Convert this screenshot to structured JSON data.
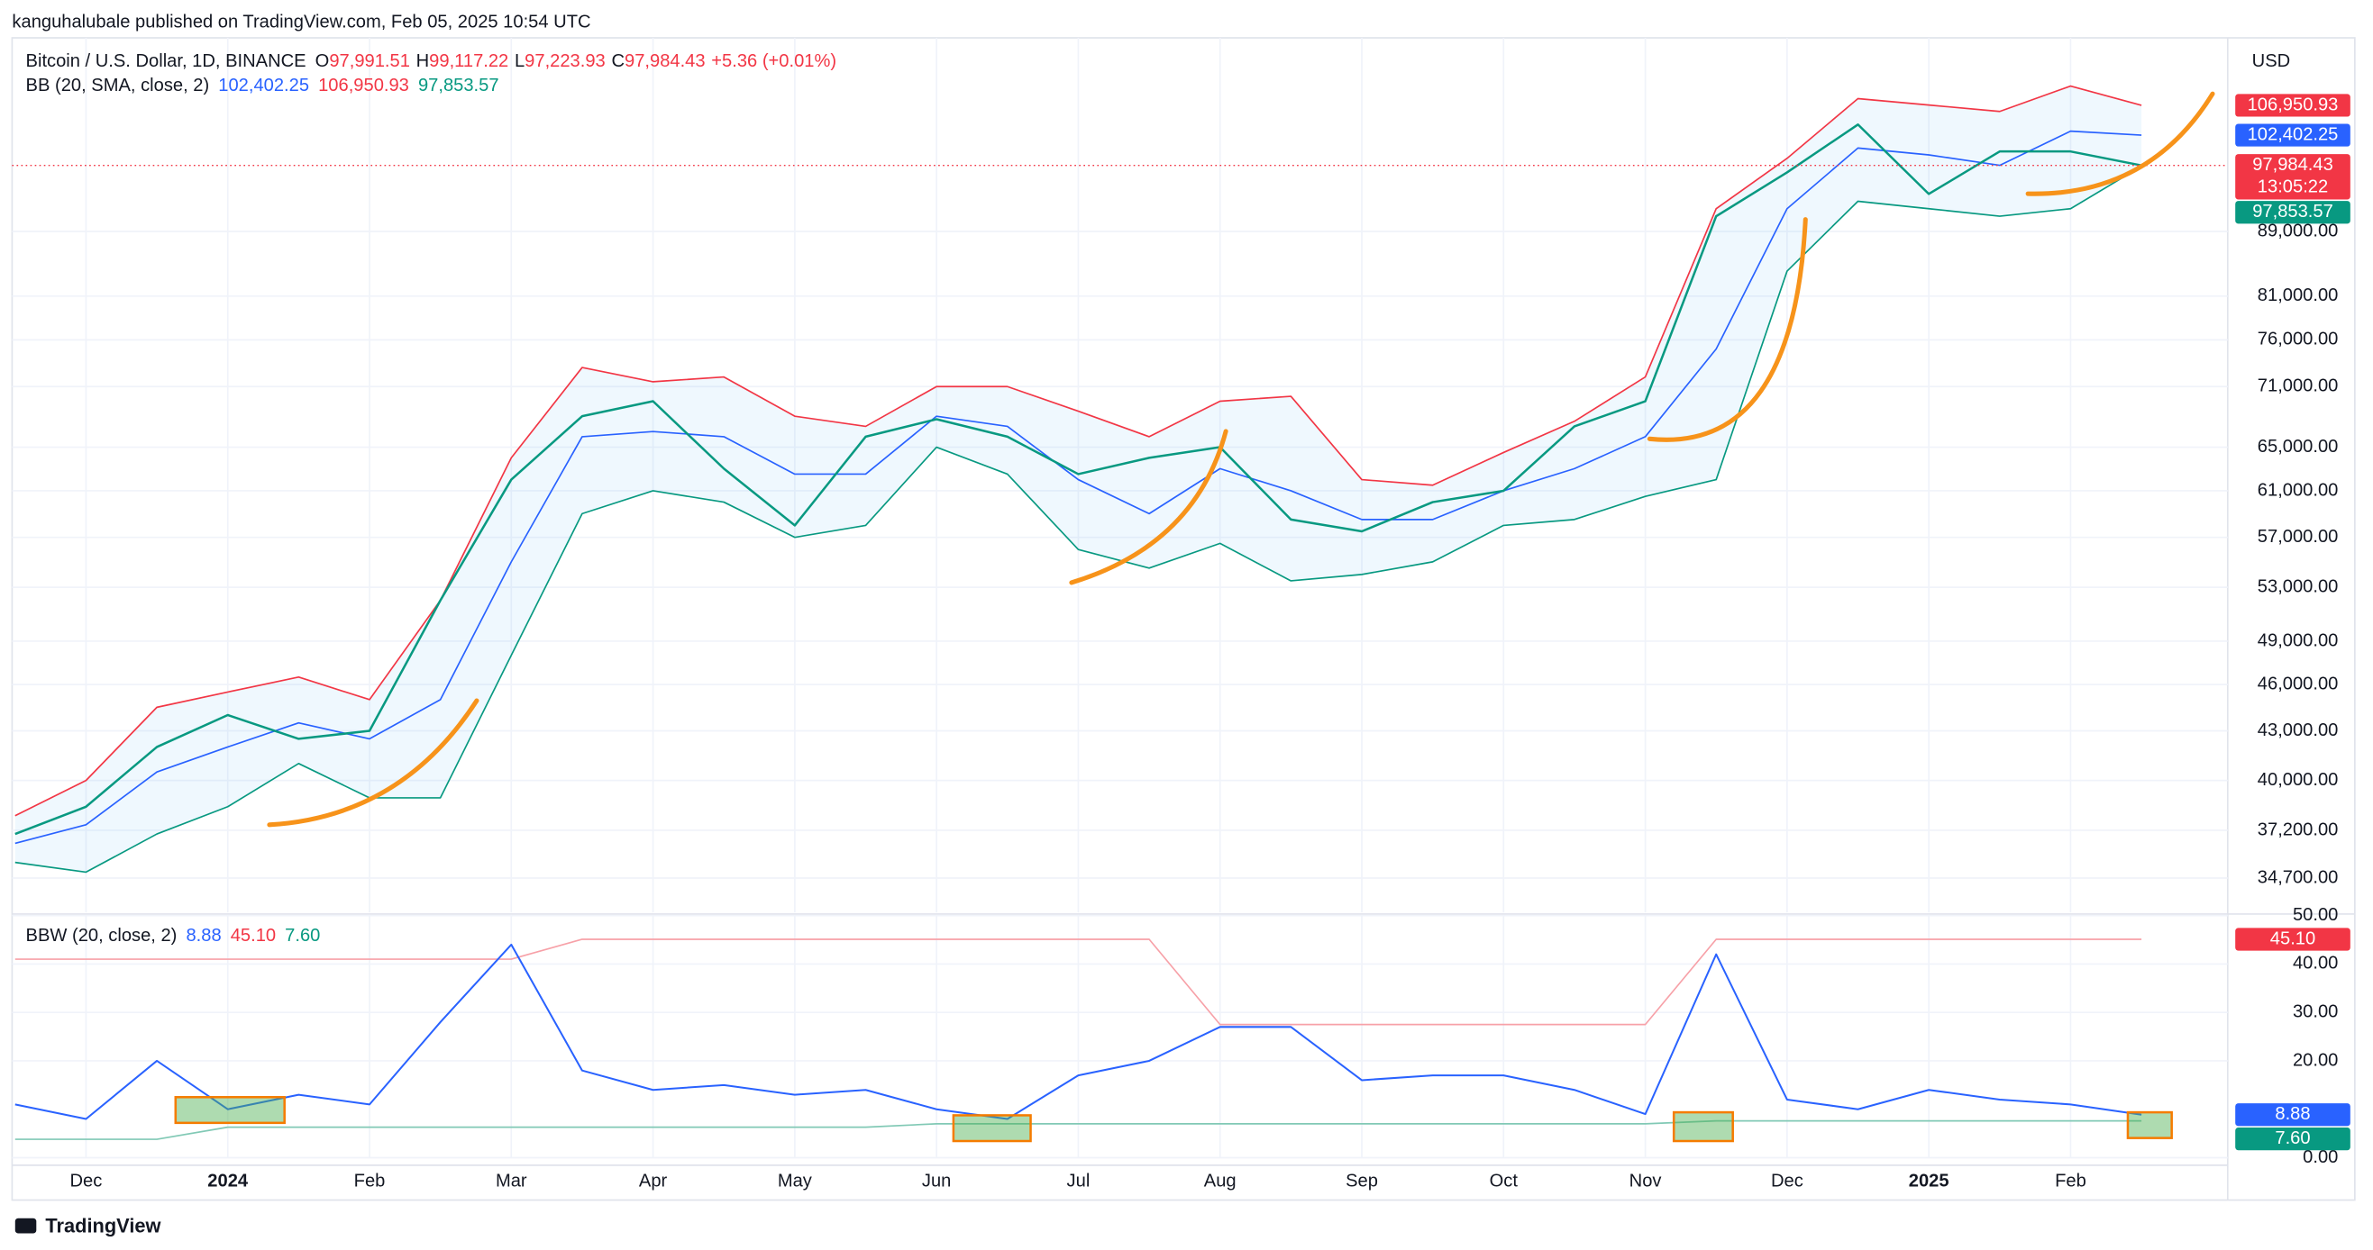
{
  "header": "kanguhalubale published on TradingView.com, Feb 05, 2025 10:54 UTC",
  "footer": "TradingView",
  "chart_data": [
    {
      "type": "line",
      "title": "Bitcoin / U.S. Dollar, 1D, BINANCE",
      "ohlc": [
        {
          "label": "O",
          "value": "97,991.51"
        },
        {
          "label": "H",
          "value": "99,117.22"
        },
        {
          "label": "L",
          "value": "97,223.93"
        },
        {
          "label": "C",
          "value": "97,984.43"
        }
      ],
      "change": "+5.36 (+0.01%)",
      "indicator": "BB (20, SMA, close, 2)",
      "indicator_values": [
        {
          "value": "102,402.25",
          "color": "#2962ff"
        },
        {
          "value": "106,950.93",
          "color": "#f23645"
        },
        {
          "value": "97,853.57",
          "color": "#089981"
        }
      ],
      "currency": "USD",
      "categories": [
        null,
        "Dec",
        null,
        "2024",
        null,
        "Feb",
        null,
        "Mar",
        null,
        "Apr",
        null,
        "May",
        null,
        "Jun",
        null,
        "Jul",
        null,
        "Aug",
        null,
        "Sep",
        null,
        "Oct",
        null,
        "Nov",
        null,
        "Dec",
        null,
        "2025",
        null,
        "Feb",
        null
      ],
      "close": {
        "color": "#089981",
        "values": [
          37000,
          38500,
          42000,
          44000,
          42500,
          43000,
          52000,
          62000,
          68000,
          69500,
          63000,
          58000,
          66000,
          67700,
          66000,
          62500,
          64000,
          65000,
          58500,
          57500,
          60000,
          61000,
          67000,
          69500,
          91000,
          97000,
          104000,
          94000,
          100000,
          100000,
          97984.43
        ]
      },
      "bb_upper": {
        "color": "#f23645",
        "values": [
          38000,
          40000,
          44500,
          45500,
          46500,
          45000,
          52000,
          64000,
          73000,
          71500,
          72000,
          68000,
          67000,
          71000,
          71000,
          68500,
          66000,
          69500,
          70000,
          62000,
          61500,
          64500,
          67500,
          72000,
          92000,
          99000,
          108000,
          107000,
          106000,
          110000,
          106950.93
        ]
      },
      "bb_basis": {
        "color": "#2962ff",
        "values": [
          36500,
          37500,
          40500,
          42000,
          43500,
          42500,
          45000,
          55000,
          66000,
          66500,
          66000,
          62500,
          62500,
          68000,
          67000,
          62000,
          59000,
          63000,
          61000,
          58500,
          58500,
          61000,
          63000,
          66000,
          75000,
          92000,
          100500,
          99500,
          98000,
          103000,
          102402.25
        ]
      },
      "bb_lower": {
        "color": "#089981",
        "values": [
          35500,
          35000,
          37000,
          38500,
          41000,
          39000,
          39000,
          48000,
          59000,
          61000,
          60000,
          57000,
          58000,
          65000,
          62500,
          56000,
          54500,
          56500,
          53500,
          54000,
          55000,
          58000,
          58500,
          60500,
          62000,
          84000,
          93000,
          92000,
          91000,
          92000,
          97853.57
        ]
      },
      "band_fill": "#2196f3",
      "log_scale": true,
      "grid": true,
      "ylim": [
        33000,
        118000
      ],
      "yticks": [
        {
          "value": 34700,
          "label": "34,700.00"
        },
        {
          "value": 37200,
          "label": "37,200.00"
        },
        {
          "value": 40000,
          "label": "40,000.00"
        },
        {
          "value": 43000,
          "label": "43,000.00"
        },
        {
          "value": 46000,
          "label": "46,000.00"
        },
        {
          "value": 49000,
          "label": "49,000.00"
        },
        {
          "value": 53000,
          "label": "53,000.00"
        },
        {
          "value": 57000,
          "label": "57,000.00"
        },
        {
          "value": 61000,
          "label": "61,000.00"
        },
        {
          "value": 65000,
          "label": "65,000.00"
        },
        {
          "value": 71000,
          "label": "71,000.00"
        },
        {
          "value": 76000,
          "label": "76,000.00"
        },
        {
          "value": 81000,
          "label": "81,000.00"
        },
        {
          "value": 89000,
          "label": "89,000.00"
        }
      ],
      "price_tags": [
        {
          "value": 106950.93,
          "label": "106,950.93",
          "color": "#f23645"
        },
        {
          "value": 102402.25,
          "label": "102,402.25",
          "color": "#2962ff"
        },
        {
          "value": 97984.43,
          "label": "97,984.43",
          "color": "#f23645"
        },
        {
          "value": 97853.57,
          "label": "97,853.57",
          "color": "#089981"
        }
      ],
      "countdown": "13:05:22"
    },
    {
      "type": "line",
      "title": "BBW (20, close, 2)",
      "legend_values": [
        {
          "value": "8.88",
          "color": "#2962ff"
        },
        {
          "value": "45.10",
          "color": "#f23645"
        },
        {
          "value": "7.60",
          "color": "#089981"
        }
      ],
      "bbw": {
        "color": "#2962ff",
        "values": [
          11,
          8,
          20,
          10,
          13,
          11,
          28,
          44,
          18,
          14,
          15,
          13,
          14,
          10,
          8,
          17,
          20,
          27,
          27,
          16,
          17,
          17,
          14,
          9,
          42,
          12,
          10,
          14,
          12,
          11,
          8.88
        ]
      },
      "highest": {
        "color": "#f7a1a8",
        "values": [
          41,
          41,
          41,
          41,
          41,
          41,
          41,
          41,
          45.1,
          45.1,
          45.1,
          45.1,
          45.1,
          45.1,
          45.1,
          45.1,
          45.1,
          27.5,
          27.5,
          27.5,
          27.5,
          27.5,
          27.5,
          27.5,
          45.1,
          45.1,
          45.1,
          45.1,
          45.1,
          45.1,
          45.1
        ]
      },
      "lowest": {
        "color": "#81c9b5",
        "values": [
          3.8,
          3.8,
          3.8,
          6.3,
          6.3,
          6.3,
          6.3,
          6.3,
          6.3,
          6.3,
          6.3,
          6.3,
          6.3,
          7,
          7,
          7,
          7,
          7,
          7,
          7,
          7,
          7,
          7,
          7,
          7.6,
          7.6,
          7.6,
          7.6,
          7.6,
          7.6,
          7.6
        ]
      },
      "ylim": [
        0,
        50
      ],
      "yticks": [
        {
          "value": 0,
          "label": "0.00"
        },
        {
          "value": 20,
          "label": "20.00"
        },
        {
          "value": 30,
          "label": "30.00"
        },
        {
          "value": 40,
          "label": "40.00"
        },
        {
          "value": 50,
          "label": "50.00"
        }
      ],
      "value_tags": [
        {
          "value": 45.1,
          "label": "45.10",
          "color": "#f23645"
        },
        {
          "value": 8.88,
          "label": "8.88",
          "color": "#2962ff"
        },
        {
          "value": 7.6,
          "label": "7.60",
          "color": "#089981"
        }
      ]
    }
  ]
}
